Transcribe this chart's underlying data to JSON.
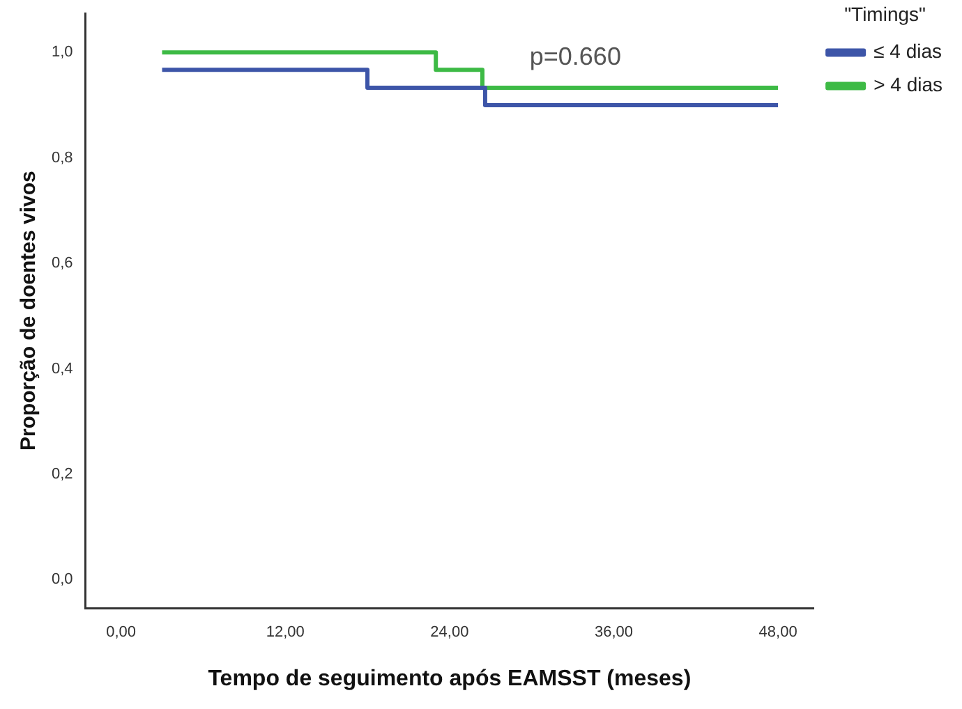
{
  "chart_data": {
    "type": "step",
    "xlabel": "Tempo de seguimento após EAMSST (meses)",
    "ylabel": "Proporção de doentes vivos",
    "legend_title": "\"Timings\"",
    "legend": "top right",
    "grid": false,
    "line_style": "solid",
    "marker": "none",
    "annotations": [
      "p=0.660"
    ],
    "xlim": [
      -2.6,
      50.6
    ],
    "ylim": [
      -0.054,
      1.074
    ],
    "xticks": [
      {
        "value": 0,
        "label": "0,00"
      },
      {
        "value": 12,
        "label": "12,00"
      },
      {
        "value": 24,
        "label": "24,00"
      },
      {
        "value": 36,
        "label": "36,00"
      },
      {
        "value": 48,
        "label": "48,00"
      }
    ],
    "yticks": [
      {
        "value": 0,
        "label": "0,0"
      },
      {
        "value": 0.2,
        "label": "0,2"
      },
      {
        "value": 0.4,
        "label": "0,4"
      },
      {
        "value": 0.6,
        "label": "0,6"
      },
      {
        "value": 0.8,
        "label": "0,8"
      },
      {
        "value": 1,
        "label": "1,0"
      }
    ],
    "series": [
      {
        "name": "≤ 4 dias",
        "color": "#3d55a8",
        "x": [
          3,
          18,
          26.6,
          48
        ],
        "values": [
          0.967,
          0.933,
          0.9,
          0.9
        ]
      },
      {
        "name": "> 4 dias",
        "color": "#3dba45",
        "x": [
          3,
          23,
          26.4,
          48
        ],
        "values": [
          1,
          0.967,
          0.933,
          0.933
        ]
      }
    ]
  }
}
